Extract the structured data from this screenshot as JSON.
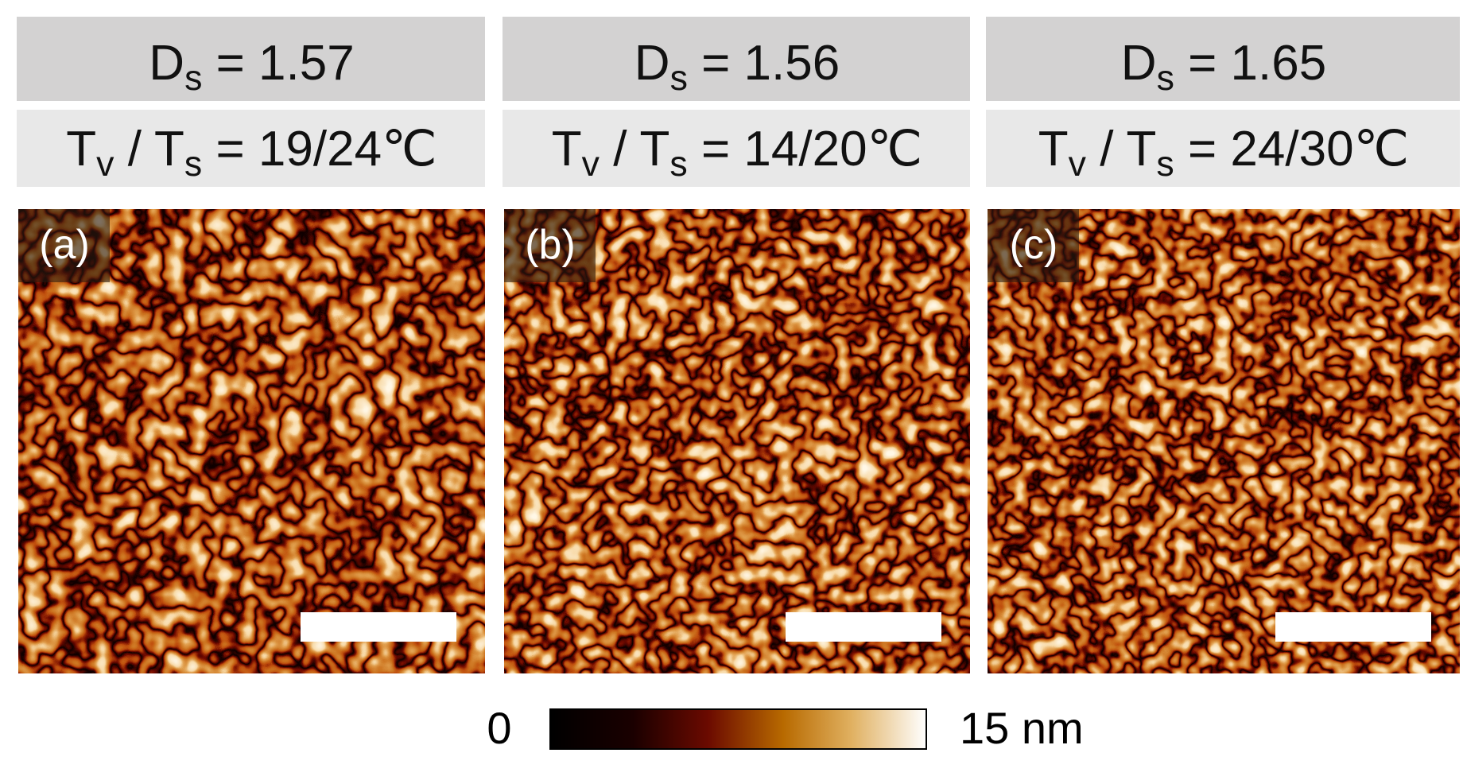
{
  "panels": [
    {
      "label": "(a)",
      "ds": [
        {
          "t": "D"
        },
        {
          "s": "s"
        },
        {
          "t": " = 1.57"
        }
      ],
      "temp": [
        {
          "t": "T"
        },
        {
          "s": "v"
        },
        {
          "t": " / T"
        },
        {
          "s": "s"
        },
        {
          "t": " = 19/24℃"
        }
      ]
    },
    {
      "label": "(b)",
      "ds": [
        {
          "t": "D"
        },
        {
          "s": "s"
        },
        {
          "t": " = 1.56"
        }
      ],
      "temp": [
        {
          "t": "T"
        },
        {
          "s": "v"
        },
        {
          "t": " / T"
        },
        {
          "s": "s"
        },
        {
          "t": " = 14/20℃"
        }
      ]
    },
    {
      "label": "(c)",
      "ds": [
        {
          "t": "D"
        },
        {
          "s": "s"
        },
        {
          "t": " = 1.65"
        }
      ],
      "temp": [
        {
          "t": "T"
        },
        {
          "s": "v"
        },
        {
          "t": " / T"
        },
        {
          "s": "s"
        },
        {
          "t": " = 24/30℃"
        }
      ]
    }
  ],
  "colorbar": {
    "min_label": "0",
    "max_label": "15 nm"
  }
}
